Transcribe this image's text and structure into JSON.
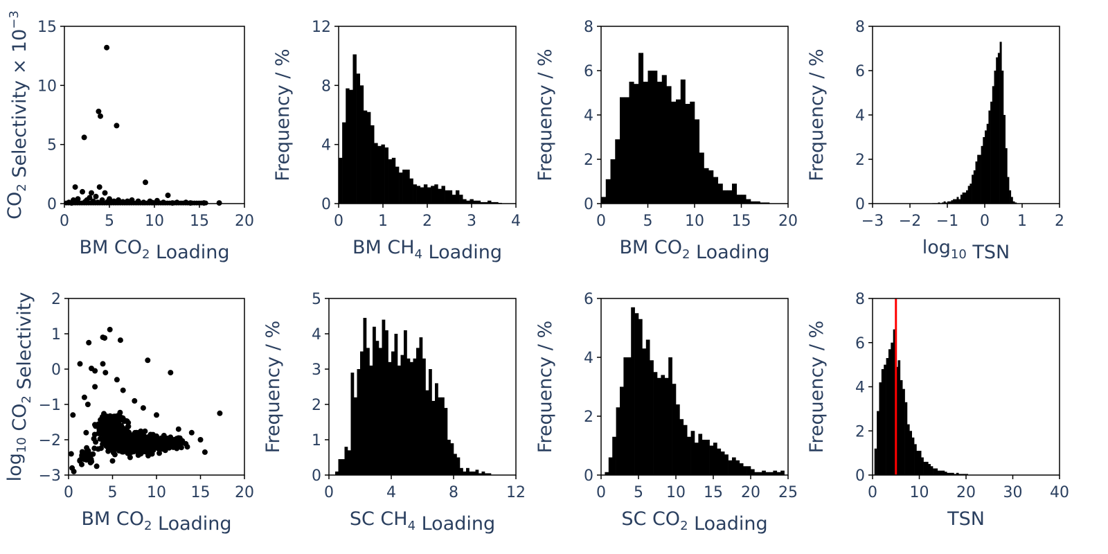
{
  "chart_data": [
    {
      "id": "p1",
      "type": "scatter",
      "xlabel": {
        "main": "BM CO",
        "sub": "2",
        "rest": " Loading"
      },
      "ylabel": {
        "main": "CO",
        "sub": "2",
        "rest": " Selectivity × 10",
        "sup": "−3"
      },
      "xlim": [
        0,
        20
      ],
      "ylim": [
        0,
        15
      ],
      "xticks": [
        0,
        5,
        10,
        15,
        20
      ],
      "yticks": [
        0,
        5,
        10,
        15
      ],
      "xtick_labels": [
        "0",
        "5",
        "10",
        "15",
        "20"
      ],
      "ytick_labels": [
        "0",
        "5",
        "10",
        "15"
      ],
      "points": [
        [
          4.7,
          13.2
        ],
        [
          3.8,
          7.8
        ],
        [
          4.0,
          7.4
        ],
        [
          5.8,
          6.6
        ],
        [
          2.2,
          5.6
        ],
        [
          9.0,
          1.8
        ],
        [
          1.2,
          1.4
        ],
        [
          3.9,
          1.4
        ],
        [
          11.5,
          0.7
        ],
        [
          2.0,
          1.0
        ],
        [
          3.0,
          0.9
        ],
        [
          4.5,
          0.9
        ],
        [
          2.8,
          0.5
        ],
        [
          3.5,
          0.6
        ],
        [
          5.0,
          0.4
        ],
        [
          6.0,
          0.3
        ],
        [
          7.5,
          0.3
        ],
        [
          8.2,
          0.2
        ],
        [
          9.5,
          0.2
        ],
        [
          10.3,
          0.25
        ],
        [
          12.5,
          0.1
        ],
        [
          13.5,
          0.1
        ],
        [
          17.2,
          0.05
        ],
        [
          1.0,
          0.3
        ],
        [
          1.5,
          0.4
        ],
        [
          2.5,
          0.3
        ],
        [
          3.2,
          0.2
        ],
        [
          4.2,
          0.3
        ],
        [
          5.5,
          0.2
        ],
        [
          6.5,
          0.15
        ],
        [
          7.0,
          0.2
        ],
        [
          8.8,
          0.1
        ],
        [
          11.0,
          0.1
        ],
        [
          14.0,
          0.05
        ],
        [
          15.5,
          0.05
        ],
        [
          0.5,
          0.1
        ],
        [
          0.8,
          0.05
        ],
        [
          2.3,
          0.15
        ],
        [
          3.7,
          0.1
        ],
        [
          4.8,
          0.15
        ],
        [
          6.8,
          0.1
        ],
        [
          9.8,
          0.08
        ],
        [
          12.0,
          0.05
        ]
      ],
      "base_band": {
        "from": 0.2,
        "to": 15.8,
        "value": 0.05
      }
    },
    {
      "id": "p2",
      "type": "bar",
      "xlabel": {
        "main": "BM CH",
        "sub": "4",
        "rest": " Loading"
      },
      "ylabel": {
        "main": "Frequency / %"
      },
      "xlim": [
        0,
        4
      ],
      "ylim": [
        0,
        12
      ],
      "xticks": [
        0,
        1,
        2,
        3,
        4
      ],
      "yticks": [
        0,
        4,
        8,
        12
      ],
      "xtick_labels": [
        "0",
        "1",
        "2",
        "3",
        "4"
      ],
      "ytick_labels": [
        "0",
        "4",
        "8",
        "12"
      ],
      "bin_start": 0,
      "bin_width": 0.08,
      "values": [
        3.1,
        5.5,
        7.8,
        7.7,
        10.1,
        8.8,
        8.0,
        6.3,
        6.2,
        5.3,
        4.1,
        3.9,
        4.0,
        3.8,
        3.0,
        3.1,
        2.5,
        2.1,
        2.3,
        2.3,
        1.7,
        1.3,
        1.2,
        1.1,
        1.3,
        1.1,
        1.2,
        1.3,
        1.0,
        1.2,
        0.9,
        0.9,
        0.6,
        0.9,
        0.6,
        0.3,
        0.2,
        0.3,
        0.2,
        0.2,
        0.1,
        0.1,
        0.2,
        0.1,
        0.1,
        0.05
      ]
    },
    {
      "id": "p3",
      "type": "bar",
      "xlabel": {
        "main": "BM CO",
        "sub": "2",
        "rest": " Loading"
      },
      "ylabel": {
        "main": "Frequency / %"
      },
      "xlim": [
        0,
        20
      ],
      "ylim": [
        0,
        8
      ],
      "xticks": [
        0,
        5,
        10,
        15,
        20
      ],
      "yticks": [
        0,
        2,
        4,
        6,
        8
      ],
      "xtick_labels": [
        "0",
        "5",
        "10",
        "15",
        "20"
      ],
      "ytick_labels": [
        "0",
        "2",
        "4",
        "6",
        "8"
      ],
      "bin_start": 0,
      "bin_width": 0.5,
      "values": [
        0.3,
        1.1,
        2.0,
        2.9,
        4.8,
        4.8,
        5.5,
        5.4,
        6.8,
        5.5,
        6.0,
        6.0,
        5.5,
        5.8,
        5.3,
        4.6,
        4.7,
        5.6,
        4.5,
        4.6,
        3.8,
        2.3,
        1.6,
        1.5,
        1.2,
        0.9,
        0.6,
        0.6,
        0.9,
        0.4,
        0.4,
        0.2,
        0.1,
        0.1,
        0.05,
        0.05
      ]
    },
    {
      "id": "p4",
      "type": "bar",
      "xlabel": {
        "main": "log",
        "sub": "10",
        "rest": " TSN"
      },
      "ylabel": {
        "main": "Frequency / %"
      },
      "xlim": [
        -3,
        2
      ],
      "ylim": [
        0,
        8
      ],
      "xticks": [
        -3,
        -2,
        -1,
        0,
        1,
        2
      ],
      "yticks": [
        0,
        2,
        4,
        6,
        8
      ],
      "xtick_labels": [
        "−3",
        "−2",
        "−1",
        "0",
        "1",
        "2"
      ],
      "ytick_labels": [
        "0",
        "2",
        "4",
        "6",
        "8"
      ],
      "bin_start": -1.4,
      "bin_width": 0.05,
      "values": [
        0.02,
        0.02,
        0.02,
        0.05,
        0.02,
        0.05,
        0.1,
        0.05,
        0.1,
        0.1,
        0.15,
        0.2,
        0.2,
        0.3,
        0.2,
        0.4,
        0.5,
        0.5,
        0.6,
        0.8,
        0.9,
        1.3,
        1.5,
        1.9,
        2.2,
        2.2,
        2.6,
        3.0,
        3.3,
        3.6,
        4.2,
        4.6,
        5.3,
        6.0,
        6.6,
        6.8,
        7.3,
        6.0,
        4.0,
        2.5,
        1.2,
        0.6,
        0.3,
        0.1,
        0.05
      ]
    },
    {
      "id": "p5",
      "type": "scatter",
      "xlabel": {
        "main": "BM CO",
        "sub": "2",
        "rest": " Loading"
      },
      "ylabel": {
        "main": "log",
        "sub": "10",
        "rest": " CO",
        "sub2": "2",
        "rest2": " Selectivity"
      },
      "xlim": [
        0,
        20
      ],
      "ylim": [
        -3,
        2
      ],
      "xticks": [
        0,
        5,
        10,
        15,
        20
      ],
      "yticks": [
        -3,
        -2,
        -1,
        0,
        1,
        2
      ],
      "xtick_labels": [
        "0",
        "5",
        "10",
        "15",
        "20"
      ],
      "ytick_labels": [
        "−3",
        "−2",
        "−1",
        "0",
        "1",
        "2"
      ],
      "points": [
        [
          4.7,
          1.12
        ],
        [
          3.9,
          0.9
        ],
        [
          5.9,
          0.82
        ],
        [
          2.3,
          0.75
        ],
        [
          4.1,
          0.88
        ],
        [
          1.3,
          0.15
        ],
        [
          3.9,
          0.15
        ],
        [
          9.0,
          0.25
        ],
        [
          11.6,
          -0.1
        ],
        [
          17.2,
          -1.25
        ],
        [
          0.5,
          -1.3
        ],
        [
          2.6,
          0.02
        ],
        [
          3.0,
          -0.05
        ],
        [
          4.2,
          -0.1
        ],
        [
          5.5,
          -0.3
        ],
        [
          3.0,
          -0.5
        ],
        [
          6.2,
          -0.6
        ],
        [
          7.5,
          -0.9
        ],
        [
          1.8,
          -0.8
        ],
        [
          2.2,
          -1.0
        ],
        [
          8.5,
          -1.1
        ],
        [
          10.0,
          -1.3
        ],
        [
          12.5,
          -1.7
        ],
        [
          14.0,
          -1.8
        ],
        [
          15.0,
          -2.0
        ],
        [
          15.5,
          -2.35
        ],
        [
          13.5,
          -2.2
        ],
        [
          0.3,
          -2.4
        ],
        [
          0.4,
          -2.8
        ],
        [
          0.6,
          -2.9
        ],
        [
          1.5,
          -2.7
        ],
        [
          3.2,
          -2.75
        ],
        [
          5.0,
          -2.6
        ],
        [
          7.0,
          -2.5
        ],
        [
          9.5,
          -2.4
        ],
        [
          11.0,
          -2.3
        ],
        [
          2.0,
          -1.8
        ],
        [
          4.0,
          -1.7
        ],
        [
          6.0,
          -1.6
        ],
        [
          8.0,
          -1.8
        ],
        [
          10.0,
          -1.9
        ],
        [
          12.0,
          -2.0
        ]
      ],
      "clouds": [
        {
          "cx": 7.0,
          "cy": -2.1,
          "rx": 6.2,
          "ry": 0.55,
          "n": 420
        },
        {
          "cx": 5.0,
          "cy": -1.6,
          "rx": 3.2,
          "ry": 0.75,
          "n": 160
        },
        {
          "cx": 11.5,
          "cy": -2.1,
          "rx": 2.8,
          "ry": 0.35,
          "n": 90
        },
        {
          "cx": 2.0,
          "cy": -2.45,
          "rx": 1.6,
          "ry": 0.3,
          "n": 70
        }
      ]
    },
    {
      "id": "p6",
      "type": "bar",
      "xlabel": {
        "main": "SC CH",
        "sub": "4",
        "rest": " Loading"
      },
      "ylabel": {
        "main": "Frequency / %"
      },
      "xlim": [
        0,
        12
      ],
      "ylim": [
        0,
        5
      ],
      "xticks": [
        0,
        4,
        8,
        12
      ],
      "yticks": [
        0,
        1,
        2,
        3,
        4,
        5
      ],
      "xtick_labels": [
        "0",
        "4",
        "8",
        "12"
      ],
      "ytick_labels": [
        "0",
        "1",
        "2",
        "3",
        "4",
        "5"
      ],
      "bin_start": 0.4,
      "bin_width": 0.2,
      "values": [
        0.1,
        0.45,
        0.45,
        0.8,
        0.7,
        2.9,
        2.2,
        3.0,
        3.5,
        4.45,
        3.6,
        3.1,
        4.2,
        3.8,
        3.6,
        4.4,
        4.1,
        3.2,
        3.5,
        4.0,
        3.1,
        3.4,
        4.1,
        3.3,
        3.2,
        3.3,
        3.6,
        3.9,
        3.3,
        2.4,
        3.0,
        2.1,
        2.6,
        2.2,
        2.2,
        1.9,
        1.0,
        0.9,
        0.6,
        0.5,
        0.2,
        0.1,
        0.2,
        0.1,
        0.1,
        0.15,
        0.05,
        0.1,
        0.05,
        0.05
      ]
    },
    {
      "id": "p7",
      "type": "bar",
      "xlabel": {
        "main": "SC CO",
        "sub": "2",
        "rest": " Loading"
      },
      "ylabel": {
        "main": "Frequency / %"
      },
      "xlim": [
        0,
        25
      ],
      "ylim": [
        0,
        6
      ],
      "xticks": [
        0,
        5,
        10,
        15,
        20,
        25
      ],
      "yticks": [
        0,
        2,
        4,
        6
      ],
      "xtick_labels": [
        "0",
        "5",
        "10",
        "15",
        "20",
        "25"
      ],
      "ytick_labels": [
        "0",
        "2",
        "4",
        "6"
      ],
      "bin_start": 0.5,
      "bin_width": 0.5,
      "values": [
        0.1,
        0.6,
        1.3,
        2.3,
        3.0,
        4.0,
        4.0,
        5.7,
        5.5,
        5.3,
        4.3,
        4.6,
        3.9,
        3.5,
        3.3,
        3.4,
        3.3,
        4.0,
        3.1,
        2.4,
        1.9,
        1.7,
        1.3,
        1.5,
        1.1,
        1.4,
        1.2,
        1.2,
        1.0,
        1.1,
        0.9,
        0.8,
        0.7,
        0.5,
        0.6,
        0.5,
        0.4,
        0.3,
        0.3,
        0.2,
        0.1,
        0.1,
        0.15,
        0.1,
        0.1,
        0.15,
        0.1,
        0.15
      ]
    },
    {
      "id": "p8",
      "type": "bar",
      "xlabel": {
        "main": "TSN"
      },
      "ylabel": {
        "main": "Frequency / %"
      },
      "xlim": [
        0,
        40
      ],
      "ylim": [
        0,
        8
      ],
      "xticks": [
        0,
        10,
        20,
        30,
        40
      ],
      "yticks": [
        0,
        2,
        4,
        6,
        8
      ],
      "xtick_labels": [
        "0",
        "10",
        "20",
        "30",
        "40"
      ],
      "ytick_labels": [
        "0",
        "2",
        "4",
        "6",
        "8"
      ],
      "bin_start": 0.4,
      "bin_width": 0.5,
      "values": [
        1.2,
        2.9,
        4.2,
        4.8,
        5.0,
        5.3,
        5.7,
        6.0,
        6.6,
        4.9,
        5.2,
        4.3,
        3.9,
        3.3,
        2.3,
        2.0,
        1.7,
        1.4,
        1.1,
        1.1,
        0.8,
        0.6,
        0.6,
        0.5,
        0.4,
        0.3,
        0.3,
        0.2,
        0.2,
        0.2,
        0.15,
        0.1,
        0.1,
        0.1,
        0.05,
        0.1,
        0.05,
        0.05,
        0.05,
        0.05
      ],
      "reference_line": {
        "x": 5.0,
        "color": "#ff0000"
      }
    }
  ],
  "style": {
    "axis_color": "#000000",
    "text_color": "#2a3f5f",
    "mark_color": "#000000"
  }
}
